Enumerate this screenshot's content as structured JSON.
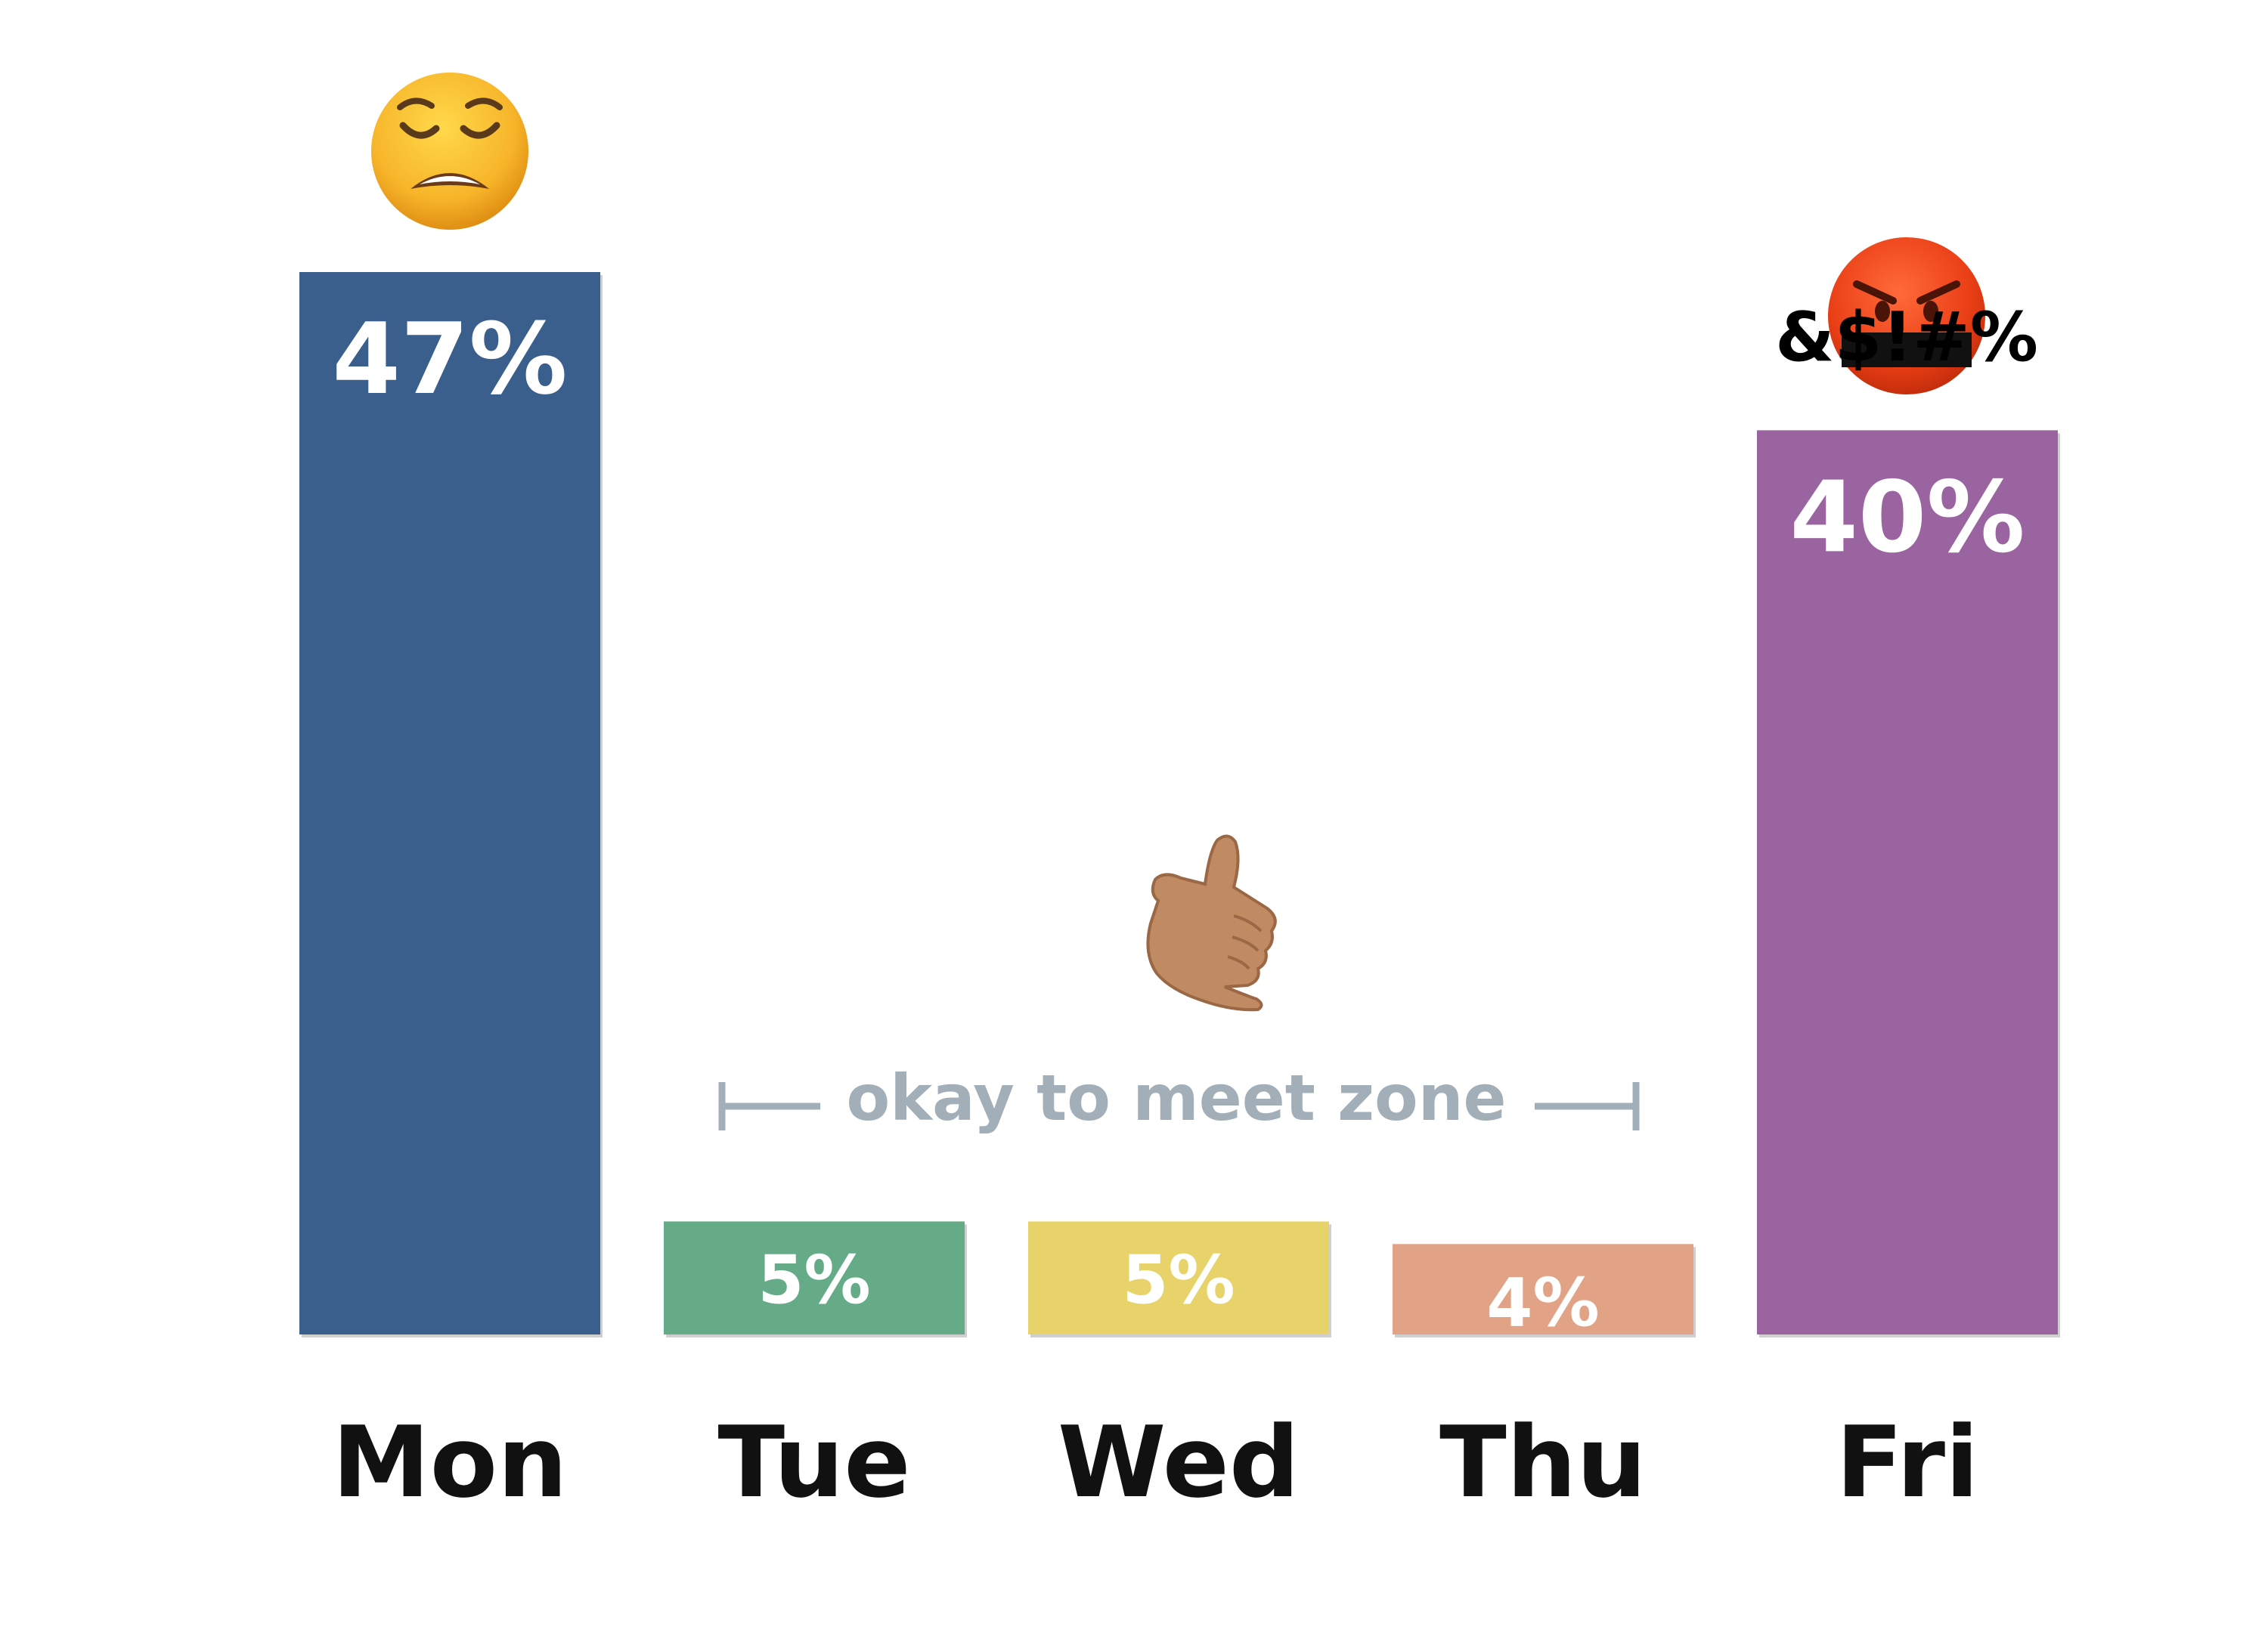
{
  "chart_data": {
    "type": "bar",
    "categories": [
      "Mon",
      "Tue",
      "Wed",
      "Thu",
      "Fri"
    ],
    "values": [
      47,
      5,
      5,
      4,
      40
    ],
    "value_labels": [
      "47%",
      "5%",
      "5%",
      "4%",
      "40%"
    ],
    "colors": [
      "#3b5f8d",
      "#65ab88",
      "#e8d36b",
      "#e1a286",
      "#9a64a0"
    ],
    "ylim": [
      0,
      47
    ],
    "grid": false,
    "title": "",
    "xlabel": "",
    "ylabel": "",
    "annotations": {
      "zone_label": "okay to meet zone",
      "zone_color": "#a3afb8",
      "mon_emoji": "weary-face",
      "fri_emoji": "face-with-symbols-on-mouth",
      "fri_emoji_symbols": "&$!#%",
      "mid_emoji": "call-me-hand"
    }
  }
}
